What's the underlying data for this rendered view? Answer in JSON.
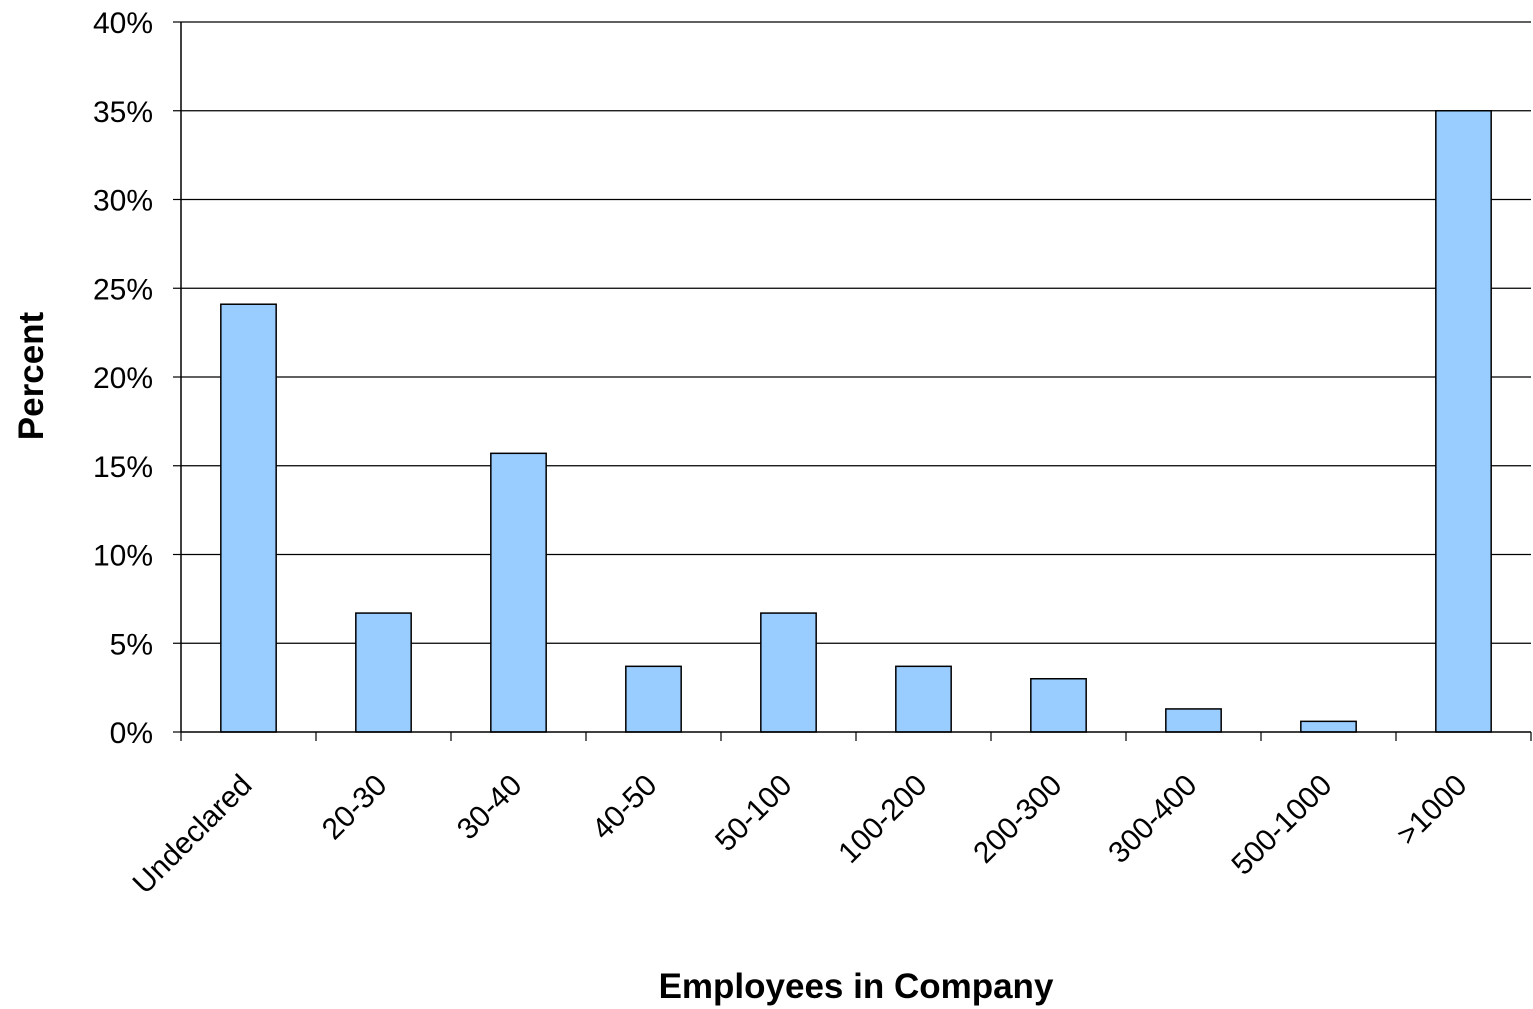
{
  "chart_data": {
    "type": "bar",
    "title": "",
    "xlabel": "Employees in Company",
    "ylabel": "Percent",
    "categories": [
      "Undeclared",
      "20-30",
      "30-40",
      "40-50",
      "50-100",
      "100-200",
      "200-300",
      "300-400",
      "500-1000",
      ">1000"
    ],
    "values": [
      24.1,
      6.7,
      15.7,
      3.7,
      6.7,
      3.7,
      3.0,
      1.3,
      0.6,
      35.0
    ],
    "ylim": [
      0,
      40
    ],
    "ytick_step": 5,
    "ytick_format": "percent",
    "grid": true,
    "legend": "none",
    "colors": {
      "bar_fill": "#99CCFF",
      "bar_stroke": "#000000",
      "grid": "#000000",
      "axis": "#000000"
    }
  }
}
